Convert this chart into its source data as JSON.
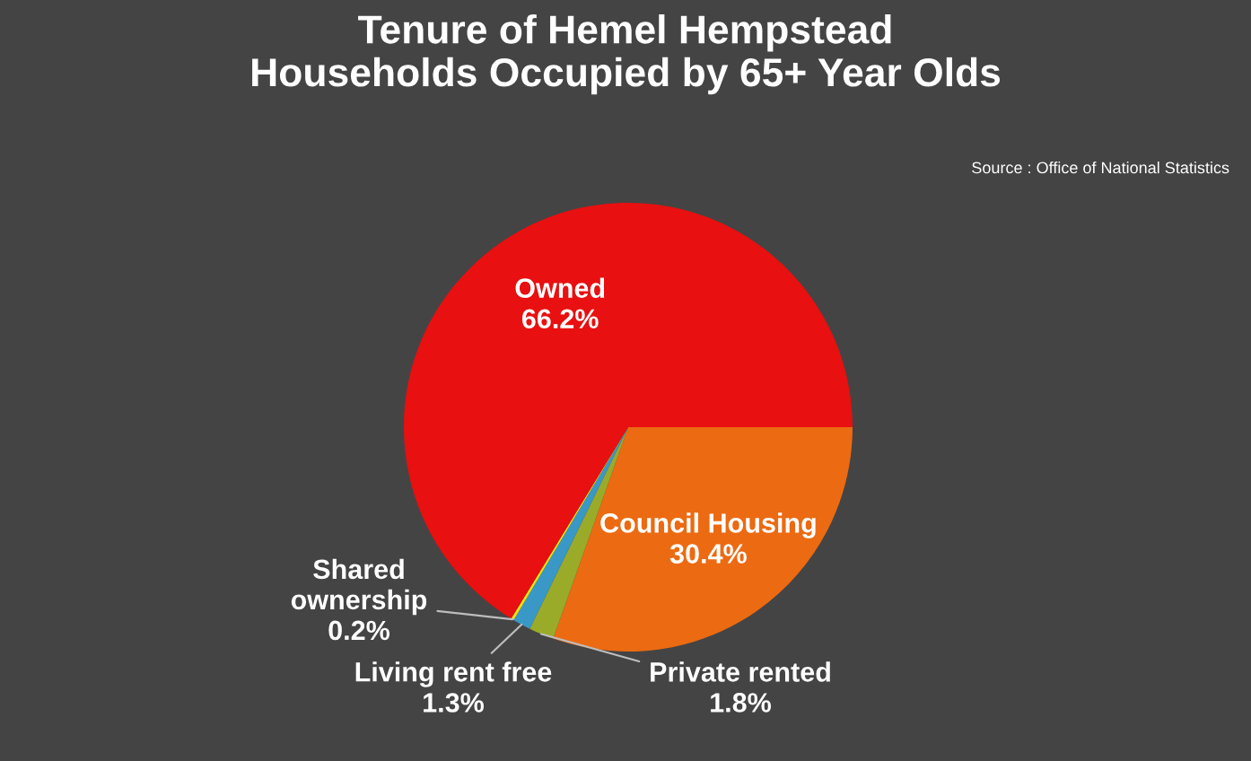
{
  "chart_data": {
    "type": "pie",
    "title": "Tenure of Hemel Hempstead\nHouseholds Occupied by 65+ Year Olds",
    "annotations": [
      "Source : Office of National Statistics"
    ],
    "categories": [
      "Council Housing",
      "Private rented",
      "Living rent free",
      "Shared ownership",
      "Owned"
    ],
    "values": [
      30.4,
      1.8,
      1.3,
      0.2,
      66.2
    ],
    "colors": [
      "#ec6a12",
      "#9aab2a",
      "#3a98c6",
      "#f2e20c",
      "#e81010"
    ],
    "value_labels": [
      "30.4%",
      "1.8%",
      "1.3%",
      "0.2%",
      "66.2%"
    ]
  }
}
